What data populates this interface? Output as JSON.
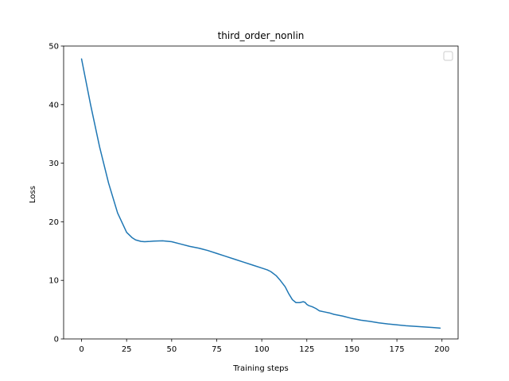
{
  "chart_data": {
    "type": "line",
    "title": "third_order_nonlin",
    "xlabel": "Training steps",
    "ylabel": "Loss",
    "xlim": [
      -9.95,
      208.95
    ],
    "ylim": [
      0,
      50
    ],
    "xticks": [
      0,
      25,
      50,
      75,
      100,
      125,
      150,
      175,
      200
    ],
    "yticks": [
      0,
      10,
      20,
      30,
      40,
      50
    ],
    "grid": false,
    "legend": {
      "placement": "top-right",
      "entries": []
    },
    "series_color": "#1f77b4",
    "series": [
      {
        "x": [
          0,
          5,
          10,
          15,
          20,
          25,
          28,
          30,
          33,
          35,
          38,
          40,
          45,
          50,
          55,
          60,
          65,
          70,
          75,
          80,
          85,
          90,
          95,
          100,
          103,
          105,
          108,
          110,
          113,
          115,
          117,
          119,
          121,
          123,
          124,
          125,
          126,
          128,
          130,
          132,
          135,
          138,
          140,
          145,
          150,
          155,
          160,
          165,
          170,
          175,
          180,
          185,
          190,
          195,
          199
        ],
        "y": [
          47.8,
          40.0,
          32.8,
          26.6,
          21.5,
          18.2,
          17.3,
          16.9,
          16.65,
          16.6,
          16.65,
          16.7,
          16.75,
          16.6,
          16.2,
          15.8,
          15.5,
          15.1,
          14.6,
          14.1,
          13.6,
          13.1,
          12.6,
          12.1,
          11.8,
          11.5,
          10.8,
          10.1,
          8.9,
          7.7,
          6.7,
          6.2,
          6.2,
          6.35,
          6.25,
          5.9,
          5.7,
          5.5,
          5.2,
          4.8,
          4.6,
          4.4,
          4.2,
          3.9,
          3.5,
          3.2,
          3.0,
          2.75,
          2.55,
          2.4,
          2.25,
          2.15,
          2.05,
          1.95,
          1.85
        ]
      }
    ]
  }
}
